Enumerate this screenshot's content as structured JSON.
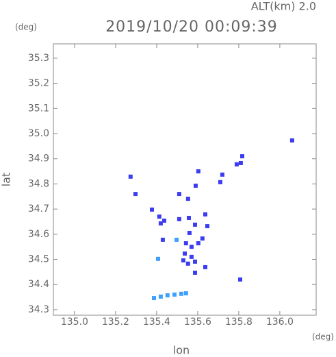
{
  "chart_data": {
    "type": "scatter",
    "title": "2019/10/20 00:09:39",
    "subtitle": "ALT(km) 2.0",
    "x_label": "lon",
    "y_label": "lat",
    "x_unit": "(deg)",
    "y_unit": "(deg)",
    "xlim": [
      134.897,
      136.177
    ],
    "ylim": [
      34.278,
      35.357
    ],
    "xticks": [
      {
        "value": 135,
        "label": "135.0"
      },
      135.2,
      135.4,
      135.6,
      135.8,
      {
        "value": 136,
        "label": "136.0"
      }
    ],
    "yticks": [
      34.3,
      34.4,
      34.5,
      34.6,
      34.7,
      34.8,
      34.9,
      {
        "value": 35,
        "label": "35.0"
      },
      35.1,
      35.2,
      35.3
    ],
    "grid": false,
    "series": [
      {
        "color": "#3c3cf0",
        "x": [
          136.06,
          135.79,
          135.81,
          135.817,
          135.603,
          135.273,
          135.72,
          135.71,
          135.59,
          135.51,
          135.297,
          135.553,
          135.637,
          135.377,
          135.413,
          135.437,
          135.42,
          135.51,
          135.557,
          135.587,
          135.647,
          135.43,
          135.56,
          135.543,
          135.57,
          135.603,
          135.623,
          135.537,
          135.57,
          135.553,
          135.587,
          135.53,
          135.637,
          135.587,
          135.807
        ],
        "y": [
          34.973,
          34.878,
          34.883,
          34.91,
          34.85,
          34.829,
          34.837,
          34.807,
          34.793,
          34.76,
          34.76,
          34.741,
          34.679,
          34.698,
          34.67,
          34.654,
          34.643,
          34.66,
          34.665,
          34.638,
          34.632,
          34.578,
          34.605,
          34.564,
          34.55,
          34.564,
          34.583,
          34.523,
          34.51,
          34.483,
          34.491,
          34.496,
          34.469,
          34.447,
          34.42
        ]
      },
      {
        "color": "#3fa0ff",
        "x": [
          135.497,
          135.407,
          135.387,
          135.42,
          135.453,
          135.487,
          135.52,
          135.543
        ],
        "y": [
          34.578,
          34.502,
          34.346,
          34.352,
          34.357,
          34.36,
          34.363,
          34.365
        ]
      }
    ]
  }
}
